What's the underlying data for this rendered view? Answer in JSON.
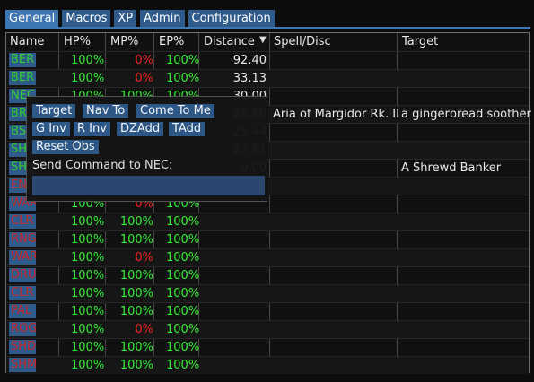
{
  "tabs": [
    "General",
    "Macros",
    "XP",
    "Admin",
    "Configuration"
  ],
  "table": {
    "headers": [
      "Name",
      "HP%",
      "MP%",
      "EP%",
      "Distance",
      "Spell/Disc",
      "Target"
    ],
    "sort_indicator": "▼",
    "rows": [
      {
        "name": "BER",
        "hp": "100%",
        "mp": "0%",
        "ep": "100%",
        "dist": "92.40",
        "spell": "",
        "target": "",
        "side": "friend",
        "mp_color": "r"
      },
      {
        "name": "BER",
        "hp": "100%",
        "mp": "0%",
        "ep": "100%",
        "dist": "33.13",
        "spell": "",
        "target": "",
        "side": "friend",
        "mp_color": "r"
      },
      {
        "name": "NEC",
        "hp": "100%",
        "mp": "100%",
        "ep": "100%",
        "dist": "30.00",
        "spell": "",
        "target": "",
        "side": "friend",
        "mp_color": "g"
      },
      {
        "name": "BR",
        "hp": "",
        "mp": "",
        "ep": "",
        "dist": "28.50",
        "spell": "Aria of Margidor Rk. II",
        "target": "a gingerbread soother",
        "side": "friend",
        "mp_color": "g"
      },
      {
        "name": "BS",
        "hp": "",
        "mp": "",
        "ep": "",
        "dist": "25.44",
        "spell": "",
        "target": "",
        "side": "friend",
        "mp_color": "g"
      },
      {
        "name": "SH",
        "hp": "",
        "mp": "",
        "ep": "",
        "dist": "22.51",
        "spell": "",
        "target": "",
        "side": "friend",
        "mp_color": "g"
      },
      {
        "name": "SH",
        "hp": "",
        "mp": "",
        "ep": "",
        "dist": "0.00",
        "spell": "",
        "target": "A Shrewd Banker",
        "side": "friend",
        "mp_color": "g"
      },
      {
        "name": "ENC",
        "hp": "",
        "mp": "",
        "ep": "",
        "dist": "",
        "spell": "",
        "target": "",
        "side": "enemy",
        "mp_color": "g"
      },
      {
        "name": "WAR",
        "hp": "100%",
        "mp": "0%",
        "ep": "100%",
        "dist": "",
        "spell": "",
        "target": "",
        "side": "enemy",
        "mp_color": "r"
      },
      {
        "name": "CLR",
        "hp": "100%",
        "mp": "100%",
        "ep": "100%",
        "dist": "",
        "spell": "",
        "target": "",
        "side": "enemy",
        "mp_color": "g"
      },
      {
        "name": "RNG",
        "hp": "100%",
        "mp": "100%",
        "ep": "100%",
        "dist": "",
        "spell": "",
        "target": "",
        "side": "enemy",
        "mp_color": "g"
      },
      {
        "name": "WAR",
        "hp": "100%",
        "mp": "0%",
        "ep": "100%",
        "dist": "",
        "spell": "",
        "target": "",
        "side": "enemy",
        "mp_color": "r"
      },
      {
        "name": "DRU",
        "hp": "100%",
        "mp": "100%",
        "ep": "100%",
        "dist": "",
        "spell": "",
        "target": "",
        "side": "enemy",
        "mp_color": "g"
      },
      {
        "name": "CLR",
        "hp": "100%",
        "mp": "100%",
        "ep": "100%",
        "dist": "",
        "spell": "",
        "target": "",
        "side": "enemy",
        "mp_color": "g"
      },
      {
        "name": "PAL",
        "hp": "100%",
        "mp": "100%",
        "ep": "100%",
        "dist": "",
        "spell": "",
        "target": "",
        "side": "enemy",
        "mp_color": "g"
      },
      {
        "name": "ROG",
        "hp": "100%",
        "mp": "0%",
        "ep": "100%",
        "dist": "",
        "spell": "",
        "target": "",
        "side": "enemy",
        "mp_color": "r"
      },
      {
        "name": "SHD",
        "hp": "100%",
        "mp": "100%",
        "ep": "100%",
        "dist": "",
        "spell": "",
        "target": "",
        "side": "enemy",
        "mp_color": "g"
      },
      {
        "name": "SHM",
        "hp": "100%",
        "mp": "100%",
        "ep": "100%",
        "dist": "",
        "spell": "",
        "target": "",
        "side": "enemy",
        "mp_color": "g"
      }
    ]
  },
  "popup": {
    "buttons_row1": [
      "Target",
      "Nav To",
      "Come To Me"
    ],
    "buttons_row2": [
      "G Inv",
      "R Inv",
      "DZAdd",
      "TAdd"
    ],
    "buttons_row3": [
      "Reset Obs"
    ],
    "send_label": "Send Command to NEC:",
    "input_value": ""
  },
  "colors": {
    "accent": "#2e5a8c",
    "hp_green": "#33ee33",
    "mp_red": "#ee2222",
    "enemy_name": "#c62a2a"
  }
}
